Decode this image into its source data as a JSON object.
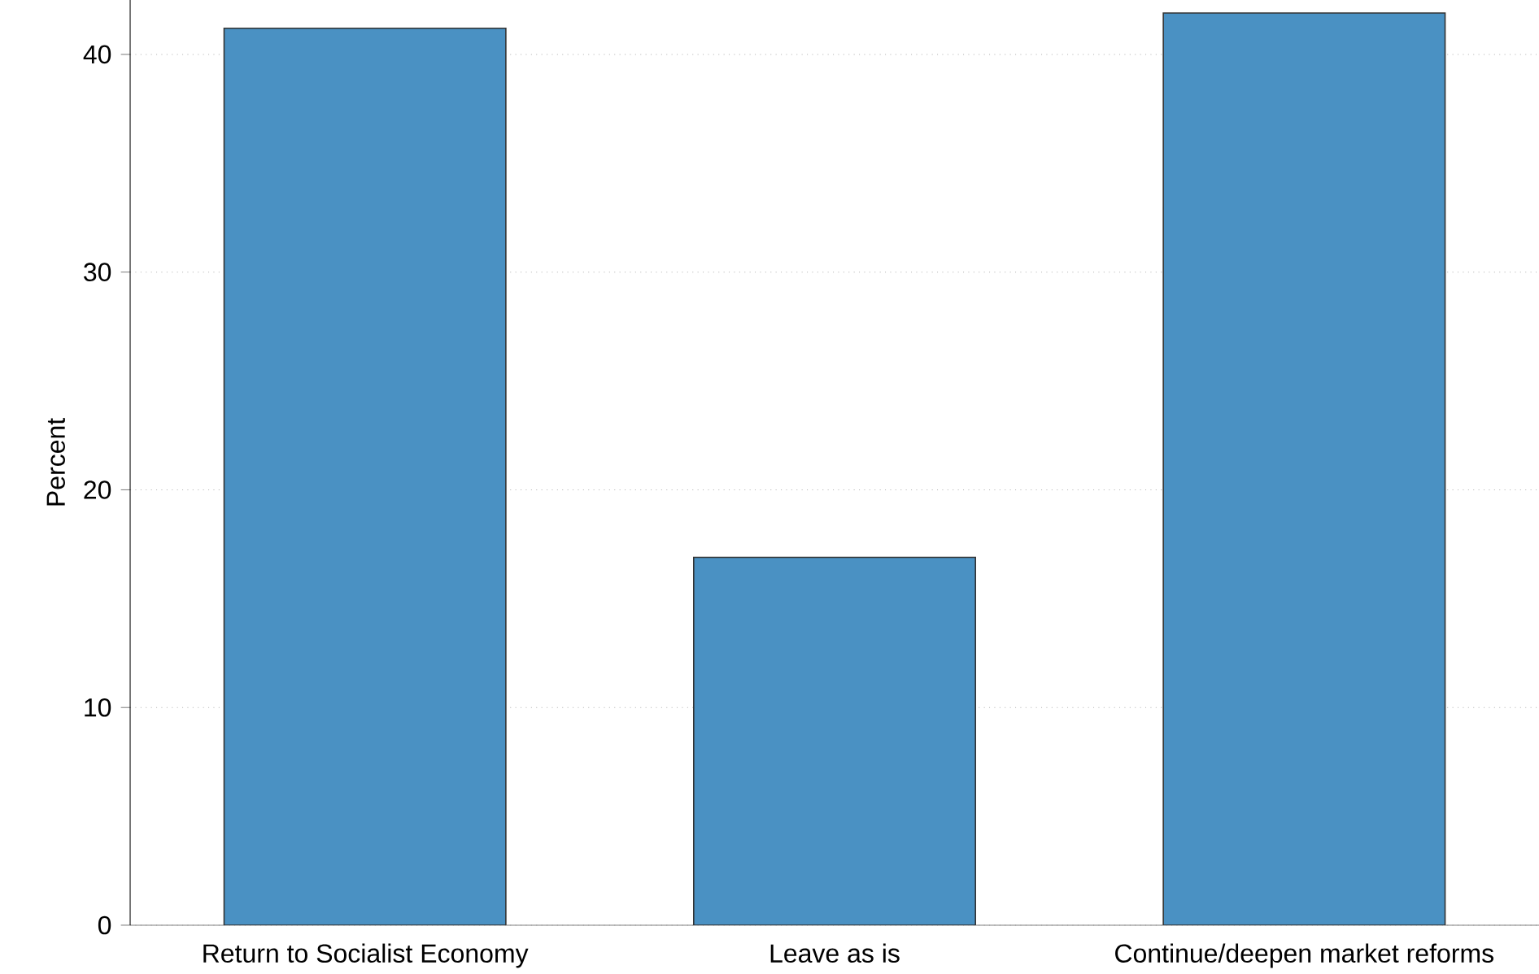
{
  "chart_data": {
    "type": "bar",
    "ylabel": "Percent",
    "categories": [
      "Return to Socialist Economy",
      "Leave as is",
      "Continue/deepen market reforms"
    ],
    "values": [
      41.2,
      16.9,
      41.9
    ],
    "color": "#4a91c3",
    "ylim": [
      0,
      42.5
    ],
    "yticks": [
      0,
      10,
      20,
      30,
      40
    ],
    "grid": "y"
  }
}
